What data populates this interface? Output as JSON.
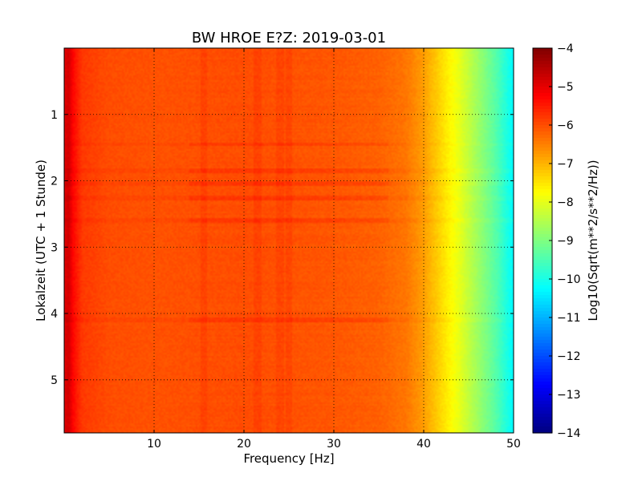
{
  "chart_data": {
    "type": "heatmap",
    "title": "BW HROE E?Z: 2019-03-01",
    "xlabel": "Frequency [Hz]",
    "ylabel": "Lokalzeit (UTC + 1 Stunde)",
    "xlim": [
      0,
      50
    ],
    "ylim": [
      0,
      5.8
    ],
    "y_inverted": true,
    "x_ticks": [
      10,
      20,
      30,
      40,
      50
    ],
    "x_tick_labels": [
      "10",
      "20",
      "30",
      "40",
      "50"
    ],
    "y_ticks": [
      1,
      2,
      3,
      4,
      5
    ],
    "y_tick_labels": [
      "1",
      "2",
      "3",
      "4",
      "5"
    ],
    "grid": true,
    "colormap": "jet",
    "colorbar": {
      "label": "Log10(Sqrt(m**2/s**2/Hz))",
      "min": -14,
      "max": -4,
      "ticks": [
        -4,
        -5,
        -6,
        -7,
        -8,
        -9,
        -10,
        -11,
        -12,
        -13,
        -14
      ],
      "tick_labels": [
        "−4",
        "−5",
        "−6",
        "−7",
        "−8",
        "−9",
        "−10",
        "−11",
        "−12",
        "−13",
        "−14"
      ]
    },
    "spectrum_profile": {
      "frequency_hz": [
        0,
        0.5,
        1,
        2,
        5,
        10,
        20,
        30,
        35,
        38,
        40,
        42,
        44,
        46,
        48,
        50
      ],
      "log10_amplitude": [
        -5.0,
        -4.8,
        -5.3,
        -5.8,
        -6.0,
        -6.05,
        -6.0,
        -6.1,
        -6.2,
        -6.4,
        -6.8,
        -7.4,
        -8.0,
        -8.7,
        -9.4,
        -10.3
      ]
    },
    "bright_hours": [
      1.45,
      1.85,
      2.05,
      2.25,
      2.6,
      4.1
    ],
    "noise_frequencies_hz": [
      15.5,
      21.5,
      24,
      25
    ]
  }
}
